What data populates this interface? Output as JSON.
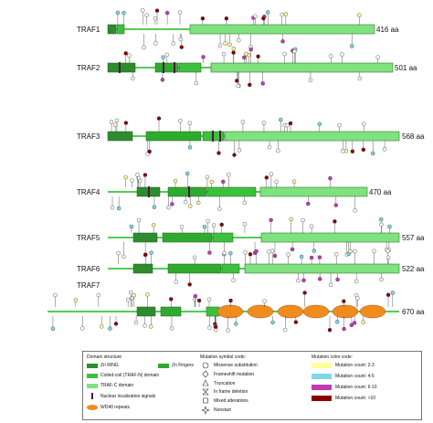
{
  "colors": {
    "zn_ring": "#2e8b2e",
    "zn_finger": "#2faa2f",
    "coiled_coil": "#3dc13d",
    "traf_c": "#7fe27f",
    "nls": "#4a1a3a",
    "wd40": "#f08c1e",
    "backbone": "#55cc55",
    "count_2_3": "#ffff99",
    "count_4_5": "#7fd7e8",
    "count_6_10": "#c23bb4",
    "count_gt10": "#8b0000"
  },
  "proteins": [
    {
      "name": "TRAF1",
      "length_label": "416 aa"
    },
    {
      "name": "TRAF2",
      "length_label": "501 aa"
    },
    {
      "name": "TRAF3",
      "length_label": "568 aa"
    },
    {
      "name": "TRAF4",
      "length_label": "470 aa"
    },
    {
      "name": "TRAF5",
      "length_label": "557 aa"
    },
    {
      "name": "TRAF6",
      "length_label": "522 aa"
    },
    {
      "name": "TRAF7",
      "length_label": "670 aa"
    }
  ],
  "legend": {
    "domain_title": "Domain structure",
    "domains": [
      {
        "label": "Zn RING",
        "key": "zn_ring"
      },
      {
        "label": "Zn Fingers",
        "key": "zn_finger"
      },
      {
        "label": "Coiled-coil (TRAF-N) domain",
        "key": "coiled_coil"
      },
      {
        "label": "TRAF-C domain",
        "key": "traf_c"
      },
      {
        "label": "Nuclear localization signals",
        "key": "nls"
      },
      {
        "label": "WD40 repeats",
        "key": "wd40"
      }
    ],
    "symbol_title": "Mutation symbol code:",
    "symbols": [
      {
        "label": "Missense substitution",
        "icon": "circle-icon"
      },
      {
        "label": "Frameshift mutation",
        "icon": "diamond-icon"
      },
      {
        "label": "Truncation",
        "icon": "triangle-icon"
      },
      {
        "label": "In frame deletion",
        "icon": "bowtie-icon"
      },
      {
        "label": "Mixed alterations",
        "icon": "square-icon"
      },
      {
        "label": "Nonstart",
        "icon": "star-icon"
      }
    ],
    "color_title": "Mutation color code:",
    "counts": [
      {
        "label": "Mutation count: 2-3",
        "key": "count_2_3"
      },
      {
        "label": "Mutation count: 4-5",
        "key": "count_4_5"
      },
      {
        "label": "Mutation count: 6-10",
        "key": "count_6_10"
      },
      {
        "label": "Mutation count: >10",
        "key": "count_gt10"
      }
    ]
  }
}
